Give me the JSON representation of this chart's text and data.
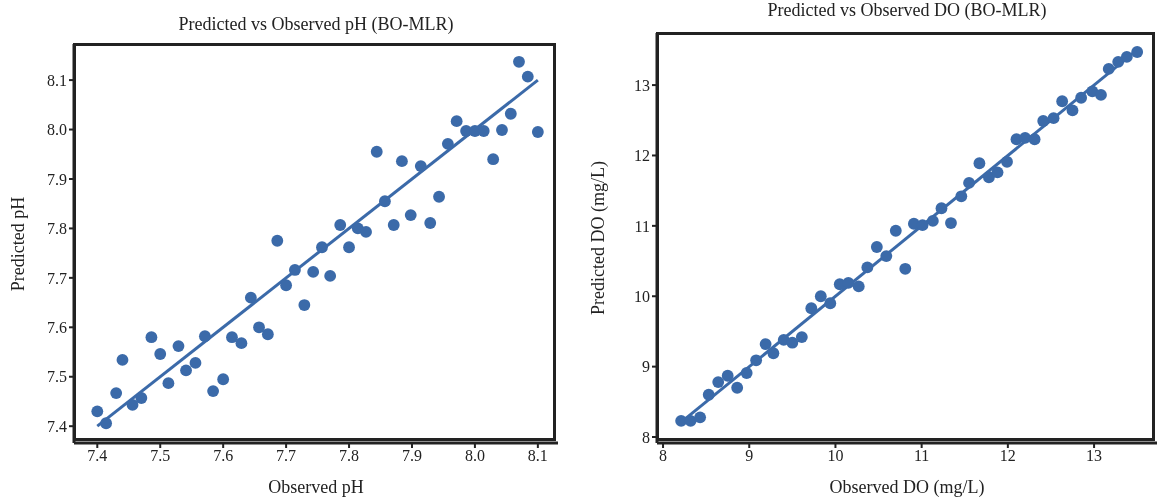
{
  "chart_data": [
    {
      "type": "scatter",
      "title": "Predicted vs Observed pH (BO-MLR)",
      "xlabel": "Observed pH",
      "ylabel": "Predicted pH",
      "xlim": [
        7.363,
        8.132
      ],
      "ylim": [
        7.366,
        8.173
      ],
      "xticks": [
        {
          "value": 7.4,
          "label": "7.4"
        },
        {
          "value": 7.5,
          "label": "7.5"
        },
        {
          "value": 7.6,
          "label": "7.6"
        },
        {
          "value": 7.7,
          "label": "7.7"
        },
        {
          "value": 7.8,
          "label": "7.8"
        },
        {
          "value": 7.9,
          "label": "7.9"
        },
        {
          "value": 8.0,
          "label": "8.0"
        },
        {
          "value": 8.1,
          "label": "8.1"
        }
      ],
      "yticks": [
        {
          "value": 7.4,
          "label": "7.4"
        },
        {
          "value": 7.5,
          "label": "7.5"
        },
        {
          "value": 7.6,
          "label": "7.6"
        },
        {
          "value": 7.7,
          "label": "7.7"
        },
        {
          "value": 7.8,
          "label": "7.8"
        },
        {
          "value": 7.9,
          "label": "7.9"
        },
        {
          "value": 8.0,
          "label": "8.0"
        },
        {
          "value": 8.1,
          "label": "8.1"
        }
      ],
      "grid": false,
      "series": [
        {
          "marker": "circle",
          "color": "#3b6aa9",
          "x": [
            7.4,
            7.414,
            7.43,
            7.44,
            7.456,
            7.47,
            7.486,
            7.5,
            7.513,
            7.529,
            7.541,
            7.556,
            7.571,
            7.584,
            7.6,
            7.614,
            7.629,
            7.644,
            7.657,
            7.671,
            7.686,
            7.7,
            7.714,
            7.729,
            7.743,
            7.757,
            7.77,
            7.786,
            7.8,
            7.814,
            7.827,
            7.844,
            7.857,
            7.871,
            7.884,
            7.898,
            7.914,
            7.929,
            7.943,
            7.957,
            7.971,
            7.986,
            8.0,
            8.014,
            8.029,
            8.043,
            8.057,
            8.07,
            8.084,
            8.1
          ],
          "values": [
            7.43,
            7.406,
            7.467,
            7.534,
            7.443,
            7.457,
            7.58,
            7.546,
            7.487,
            7.562,
            7.513,
            7.528,
            7.582,
            7.471,
            7.495,
            7.58,
            7.568,
            7.66,
            7.6,
            7.586,
            7.775,
            7.685,
            7.716,
            7.645,
            7.712,
            7.762,
            7.704,
            7.807,
            7.762,
            7.8,
            7.793,
            7.955,
            7.855,
            7.807,
            7.936,
            7.827,
            7.926,
            7.811,
            7.864,
            7.971,
            8.017,
            7.997,
            7.997,
            7.997,
            7.94,
            7.999,
            8.032,
            8.137,
            8.107,
            7.995
          ]
        },
        {
          "type": "line",
          "color": "#3b6aa9",
          "line_style": "solid",
          "x": [
            7.4,
            8.1
          ],
          "values": [
            7.4,
            8.1
          ]
        }
      ]
    },
    {
      "type": "scatter",
      "title": "Predicted vs Observed DO (BO-MLR)",
      "xlabel": "Observed DO (mg/L)",
      "ylabel": "Predicted DO (mg/L)",
      "xlim": [
        7.93,
        13.73
      ],
      "ylim": [
        7.915,
        13.74
      ],
      "xticks": [
        8,
        9,
        10,
        11,
        12,
        13
      ],
      "yticks": [
        8,
        9,
        10,
        11,
        12,
        13
      ],
      "grid": false,
      "series": [
        {
          "marker": "circle",
          "color": "#3b6aa9",
          "x": [
            8.21,
            8.32,
            8.43,
            8.53,
            8.64,
            8.75,
            8.86,
            8.97,
            9.08,
            9.19,
            9.28,
            9.4,
            9.5,
            9.61,
            9.72,
            9.83,
            9.94,
            10.05,
            10.15,
            10.27,
            10.37,
            10.48,
            10.59,
            10.7,
            10.81,
            10.91,
            11.01,
            11.13,
            11.23,
            11.34,
            11.46,
            11.55,
            11.67,
            11.78,
            11.88,
            11.99,
            12.1,
            12.2,
            12.31,
            12.41,
            12.53,
            12.63,
            12.75,
            12.85,
            12.98,
            13.08,
            13.17,
            13.28,
            13.38,
            13.5
          ],
          "values": [
            8.23,
            8.23,
            8.28,
            8.6,
            8.78,
            8.87,
            8.7,
            8.91,
            9.09,
            9.32,
            9.19,
            9.38,
            9.34,
            9.42,
            9.83,
            10.0,
            9.9,
            10.17,
            10.19,
            10.14,
            10.41,
            10.7,
            10.57,
            10.93,
            10.39,
            11.03,
            11.01,
            11.07,
            11.25,
            11.04,
            11.42,
            11.61,
            11.89,
            11.69,
            11.76,
            11.91,
            12.23,
            12.25,
            12.23,
            12.49,
            12.53,
            12.77,
            12.64,
            12.82,
            12.91,
            12.86,
            13.23,
            13.33,
            13.4,
            13.47
          ]
        },
        {
          "type": "line",
          "color": "#3b6aa9",
          "line_style": "solid",
          "x": [
            8.2,
            13.5
          ],
          "values": [
            8.2,
            13.5
          ]
        }
      ]
    }
  ]
}
